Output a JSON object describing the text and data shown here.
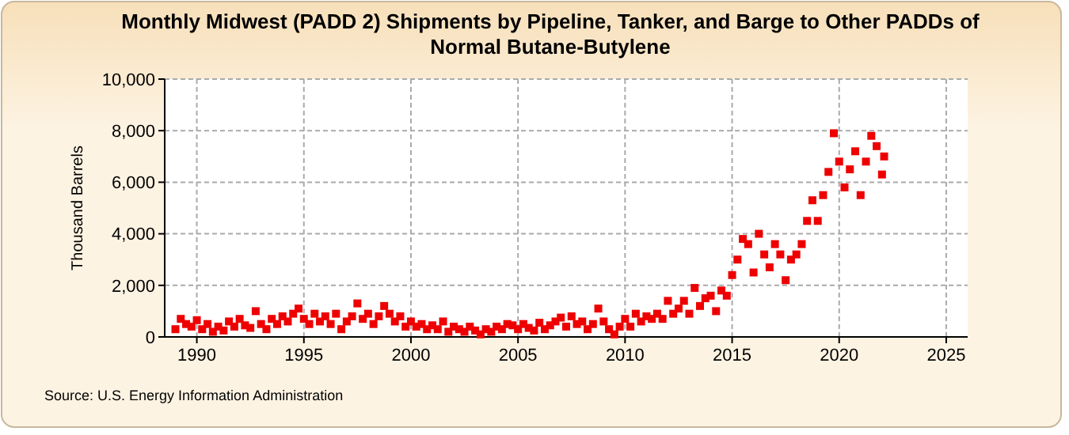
{
  "chart_data": {
    "type": "scatter",
    "title": "Monthly Midwest (PADD 2) Shipments by Pipeline, Tanker, and Barge to Other PADDs of Normal Butane-Butylene",
    "ylabel": "Thousand Barrels",
    "annotations": [
      "Source: U.S. Energy Information Administration"
    ],
    "marker": "square",
    "grid": true,
    "xlim": [
      1988.5,
      2026
    ],
    "xticks": [
      1990,
      1995,
      2000,
      2005,
      2010,
      2015,
      2020,
      2025
    ],
    "ylim": [
      0,
      10000
    ],
    "yticks": [
      {
        "value": 0,
        "label": "0"
      },
      {
        "value": 2000,
        "label": "2,000"
      },
      {
        "value": 4000,
        "label": "4,000"
      },
      {
        "value": 6000,
        "label": "6,000"
      },
      {
        "value": 8000,
        "label": "8,000"
      },
      {
        "value": 10000,
        "label": "10,000"
      }
    ],
    "series": [
      {
        "color": "#ee0000",
        "x": [
          1989,
          1989.25,
          1989.5,
          1989.75,
          1990,
          1990.25,
          1990.5,
          1990.75,
          1991,
          1991.25,
          1991.5,
          1991.75,
          1992,
          1992.25,
          1992.5,
          1992.75,
          1993,
          1993.25,
          1993.5,
          1993.75,
          1994,
          1994.25,
          1994.5,
          1994.75,
          1995,
          1995.25,
          1995.5,
          1995.75,
          1996,
          1996.25,
          1996.5,
          1996.75,
          1997,
          1997.25,
          1997.5,
          1997.75,
          1998,
          1998.25,
          1998.5,
          1998.75,
          1999,
          1999.25,
          1999.5,
          1999.75,
          2000,
          2000.25,
          2000.5,
          2000.75,
          2001,
          2001.25,
          2001.5,
          2001.75,
          2002,
          2002.25,
          2002.5,
          2002.75,
          2003,
          2003.25,
          2003.5,
          2003.75,
          2004,
          2004.25,
          2004.5,
          2004.75,
          2005,
          2005.25,
          2005.5,
          2005.75,
          2006,
          2006.25,
          2006.5,
          2006.75,
          2007,
          2007.25,
          2007.5,
          2007.75,
          2008,
          2008.25,
          2008.5,
          2008.75,
          2009,
          2009.25,
          2009.5,
          2009.75,
          2010,
          2010.25,
          2010.5,
          2010.75,
          2011,
          2011.25,
          2011.5,
          2011.75,
          2012,
          2012.25,
          2012.5,
          2012.75,
          2013,
          2013.25,
          2013.5,
          2013.75,
          2014,
          2014.25,
          2014.5,
          2014.75,
          2015,
          2015.25,
          2015.5,
          2015.75,
          2016,
          2016.25,
          2016.5,
          2016.75,
          2017,
          2017.25,
          2017.5,
          2017.75,
          2018,
          2018.25,
          2018.5,
          2018.75,
          2019,
          2019.25,
          2019.5,
          2019.75,
          2020,
          2020.25,
          2020.5,
          2020.75,
          2021,
          2021.25,
          2021.5,
          2021.75,
          2022,
          2022.1
        ],
        "values": [
          300,
          700,
          500,
          400,
          650,
          300,
          500,
          200,
          400,
          250,
          600,
          400,
          700,
          450,
          350,
          1000,
          500,
          300,
          700,
          500,
          800,
          600,
          900,
          1100,
          700,
          500,
          900,
          600,
          800,
          500,
          900,
          300,
          600,
          800,
          1300,
          700,
          900,
          500,
          800,
          1200,
          900,
          600,
          800,
          400,
          600,
          400,
          500,
          300,
          450,
          300,
          600,
          200,
          400,
          300,
          200,
          400,
          250,
          100,
          300,
          200,
          400,
          300,
          500,
          450,
          300,
          500,
          350,
          250,
          550,
          300,
          450,
          600,
          750,
          400,
          800,
          500,
          600,
          300,
          500,
          1100,
          600,
          300,
          100,
          400,
          700,
          400,
          900,
          600,
          800,
          700,
          900,
          700,
          1400,
          900,
          1100,
          1400,
          900,
          1900,
          1200,
          1500,
          1600,
          1000,
          1800,
          1600,
          2400,
          3000,
          3800,
          3600,
          2500,
          4000,
          3200,
          2700,
          3600,
          3200,
          2200,
          3000,
          3200,
          3600,
          4500,
          5300,
          4500,
          5500,
          6400,
          7900,
          6800,
          5800,
          6500,
          7200,
          5500,
          6800,
          7800,
          7400,
          6300,
          7000
        ]
      }
    ]
  }
}
